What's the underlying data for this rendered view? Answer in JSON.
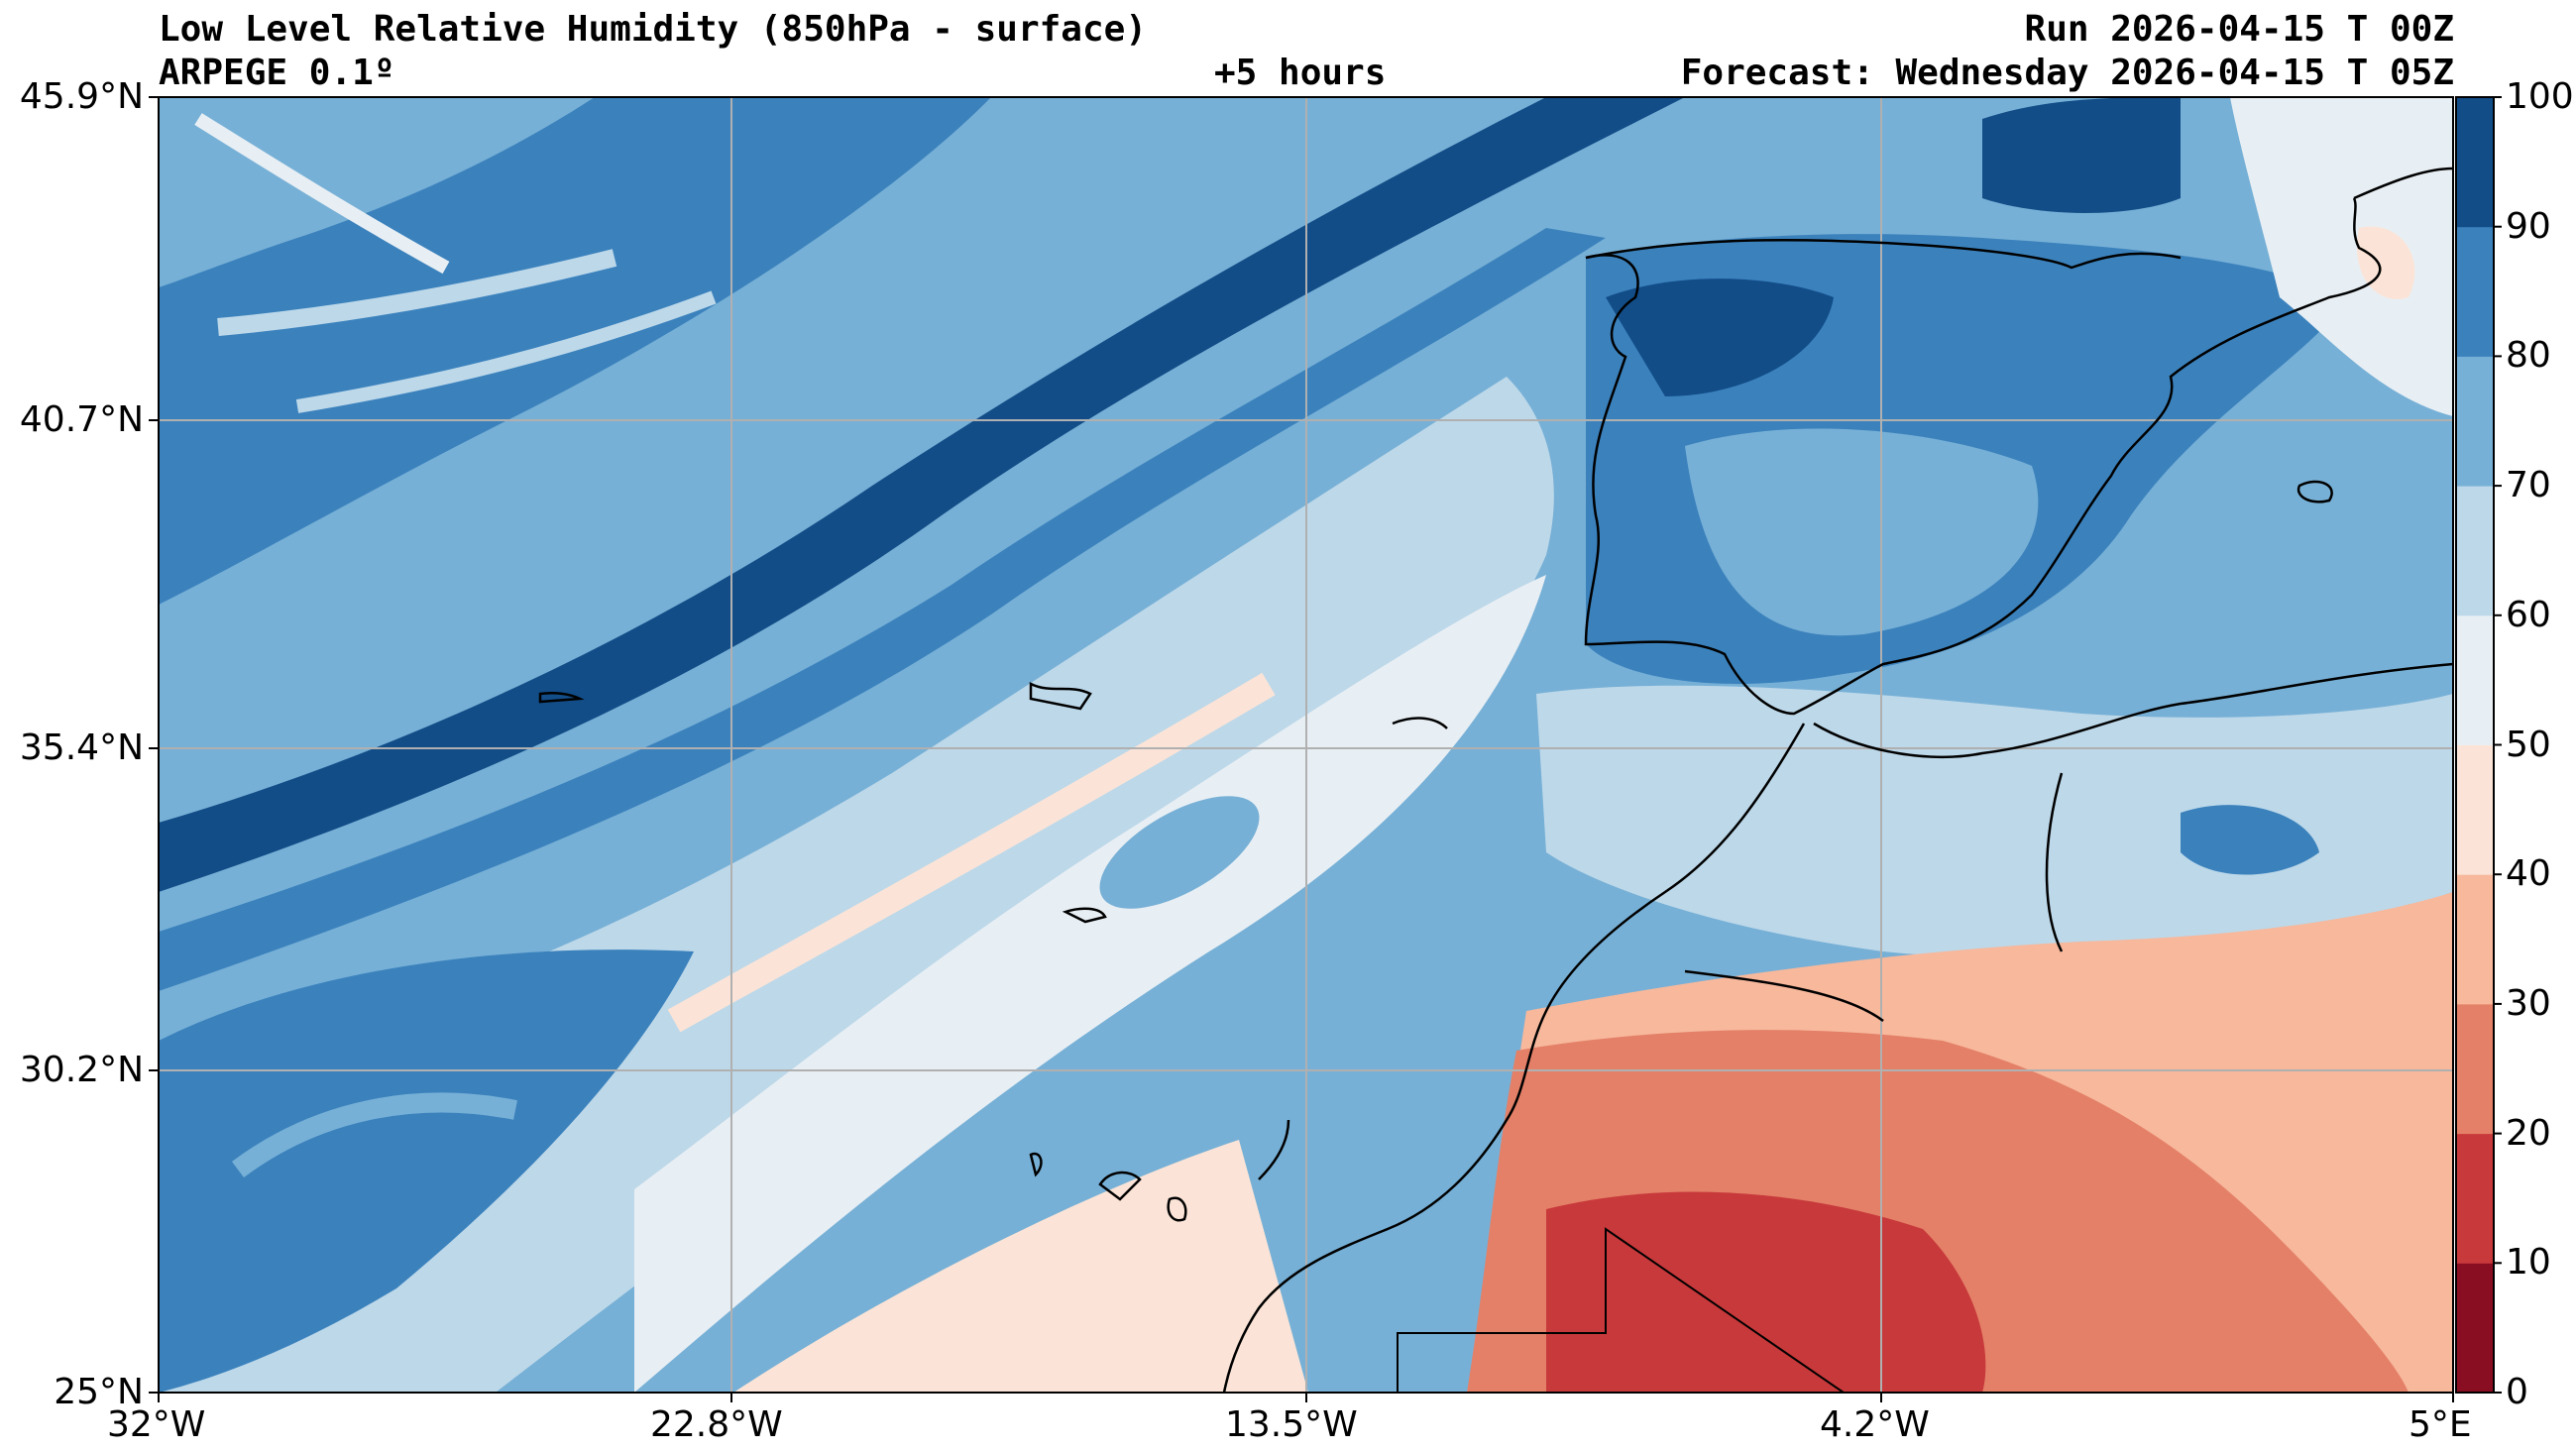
{
  "header": {
    "title": "Low Level Relative Humidity (850hPa - surface)",
    "model": "ARPEGE 0.1º",
    "lead": "+5 hours",
    "run": "Run 2026-04-15 T 00Z",
    "forecast": "Forecast: Wednesday 2026-04-15 T 05Z"
  },
  "map": {
    "lat_ticks": [
      "45.9°N",
      "40.7°N",
      "35.4°N",
      "30.2°N",
      "25°N"
    ],
    "lon_ticks": [
      "32°W",
      "22.8°W",
      "13.5°W",
      "4.2°W",
      "5°E"
    ],
    "gridlines": true,
    "extent": {
      "lon": [
        -32,
        5
      ],
      "lat": [
        25,
        45.9
      ]
    }
  },
  "colorbar": {
    "levels": [
      0,
      10,
      20,
      30,
      40,
      50,
      60,
      70,
      80,
      90,
      100
    ],
    "labels": [
      "100",
      "90",
      "80",
      "70",
      "60",
      "50",
      "40",
      "30",
      "20",
      "10",
      "0"
    ],
    "colors": [
      "#8a0e22",
      "#c8393b",
      "#e48068",
      "#f7b89c",
      "#fbe4d7",
      "#e8eff4",
      "#bdd8e9",
      "#77b0d6",
      "#3b82bd",
      "#124d88"
    ]
  },
  "palette": {
    "land_boundary": "#000000",
    "grid": "#b0b0b0"
  }
}
